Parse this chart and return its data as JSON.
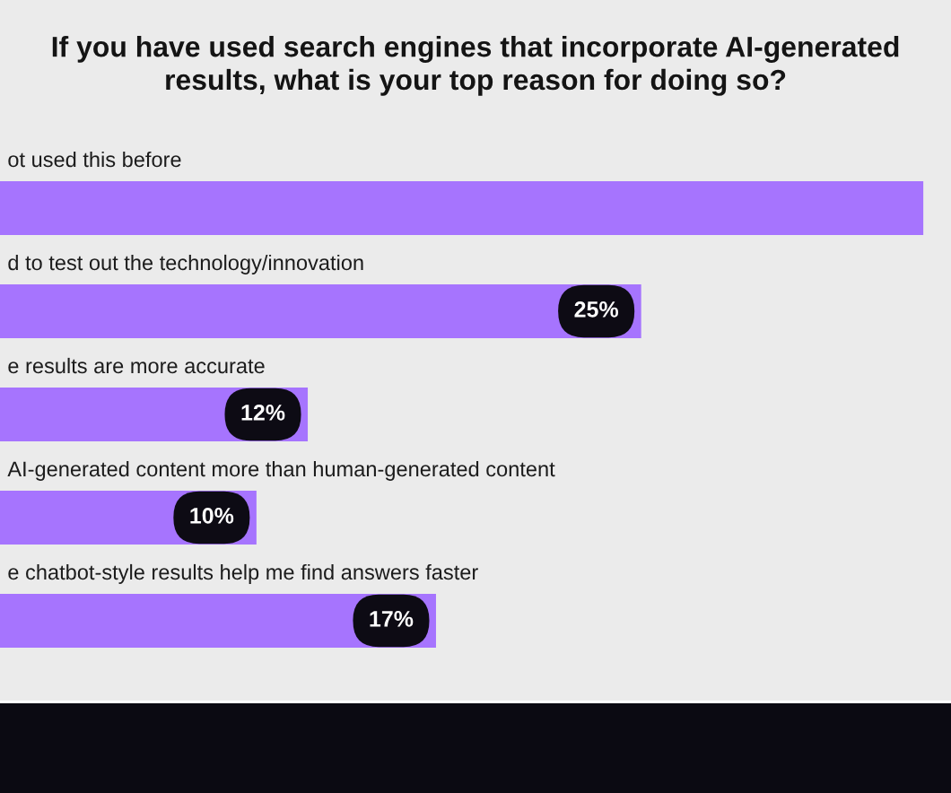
{
  "chart_data": {
    "type": "bar",
    "orientation": "horizontal",
    "title": "If you have used search engines that incorporate AI-generated\nresults, what is your top reason for doing so?",
    "categories": [
      "ot used this before",
      "d to test out the technology/innovation",
      "e results are more accurate",
      "AI-generated content more than human-generated content",
      "e chatbot-style results help me find answers faster"
    ],
    "values": [
      36,
      25,
      12,
      10,
      17
    ],
    "value_labels": [
      null,
      "25%",
      "12%",
      "10%",
      "17%"
    ],
    "color": "#a674fe"
  }
}
